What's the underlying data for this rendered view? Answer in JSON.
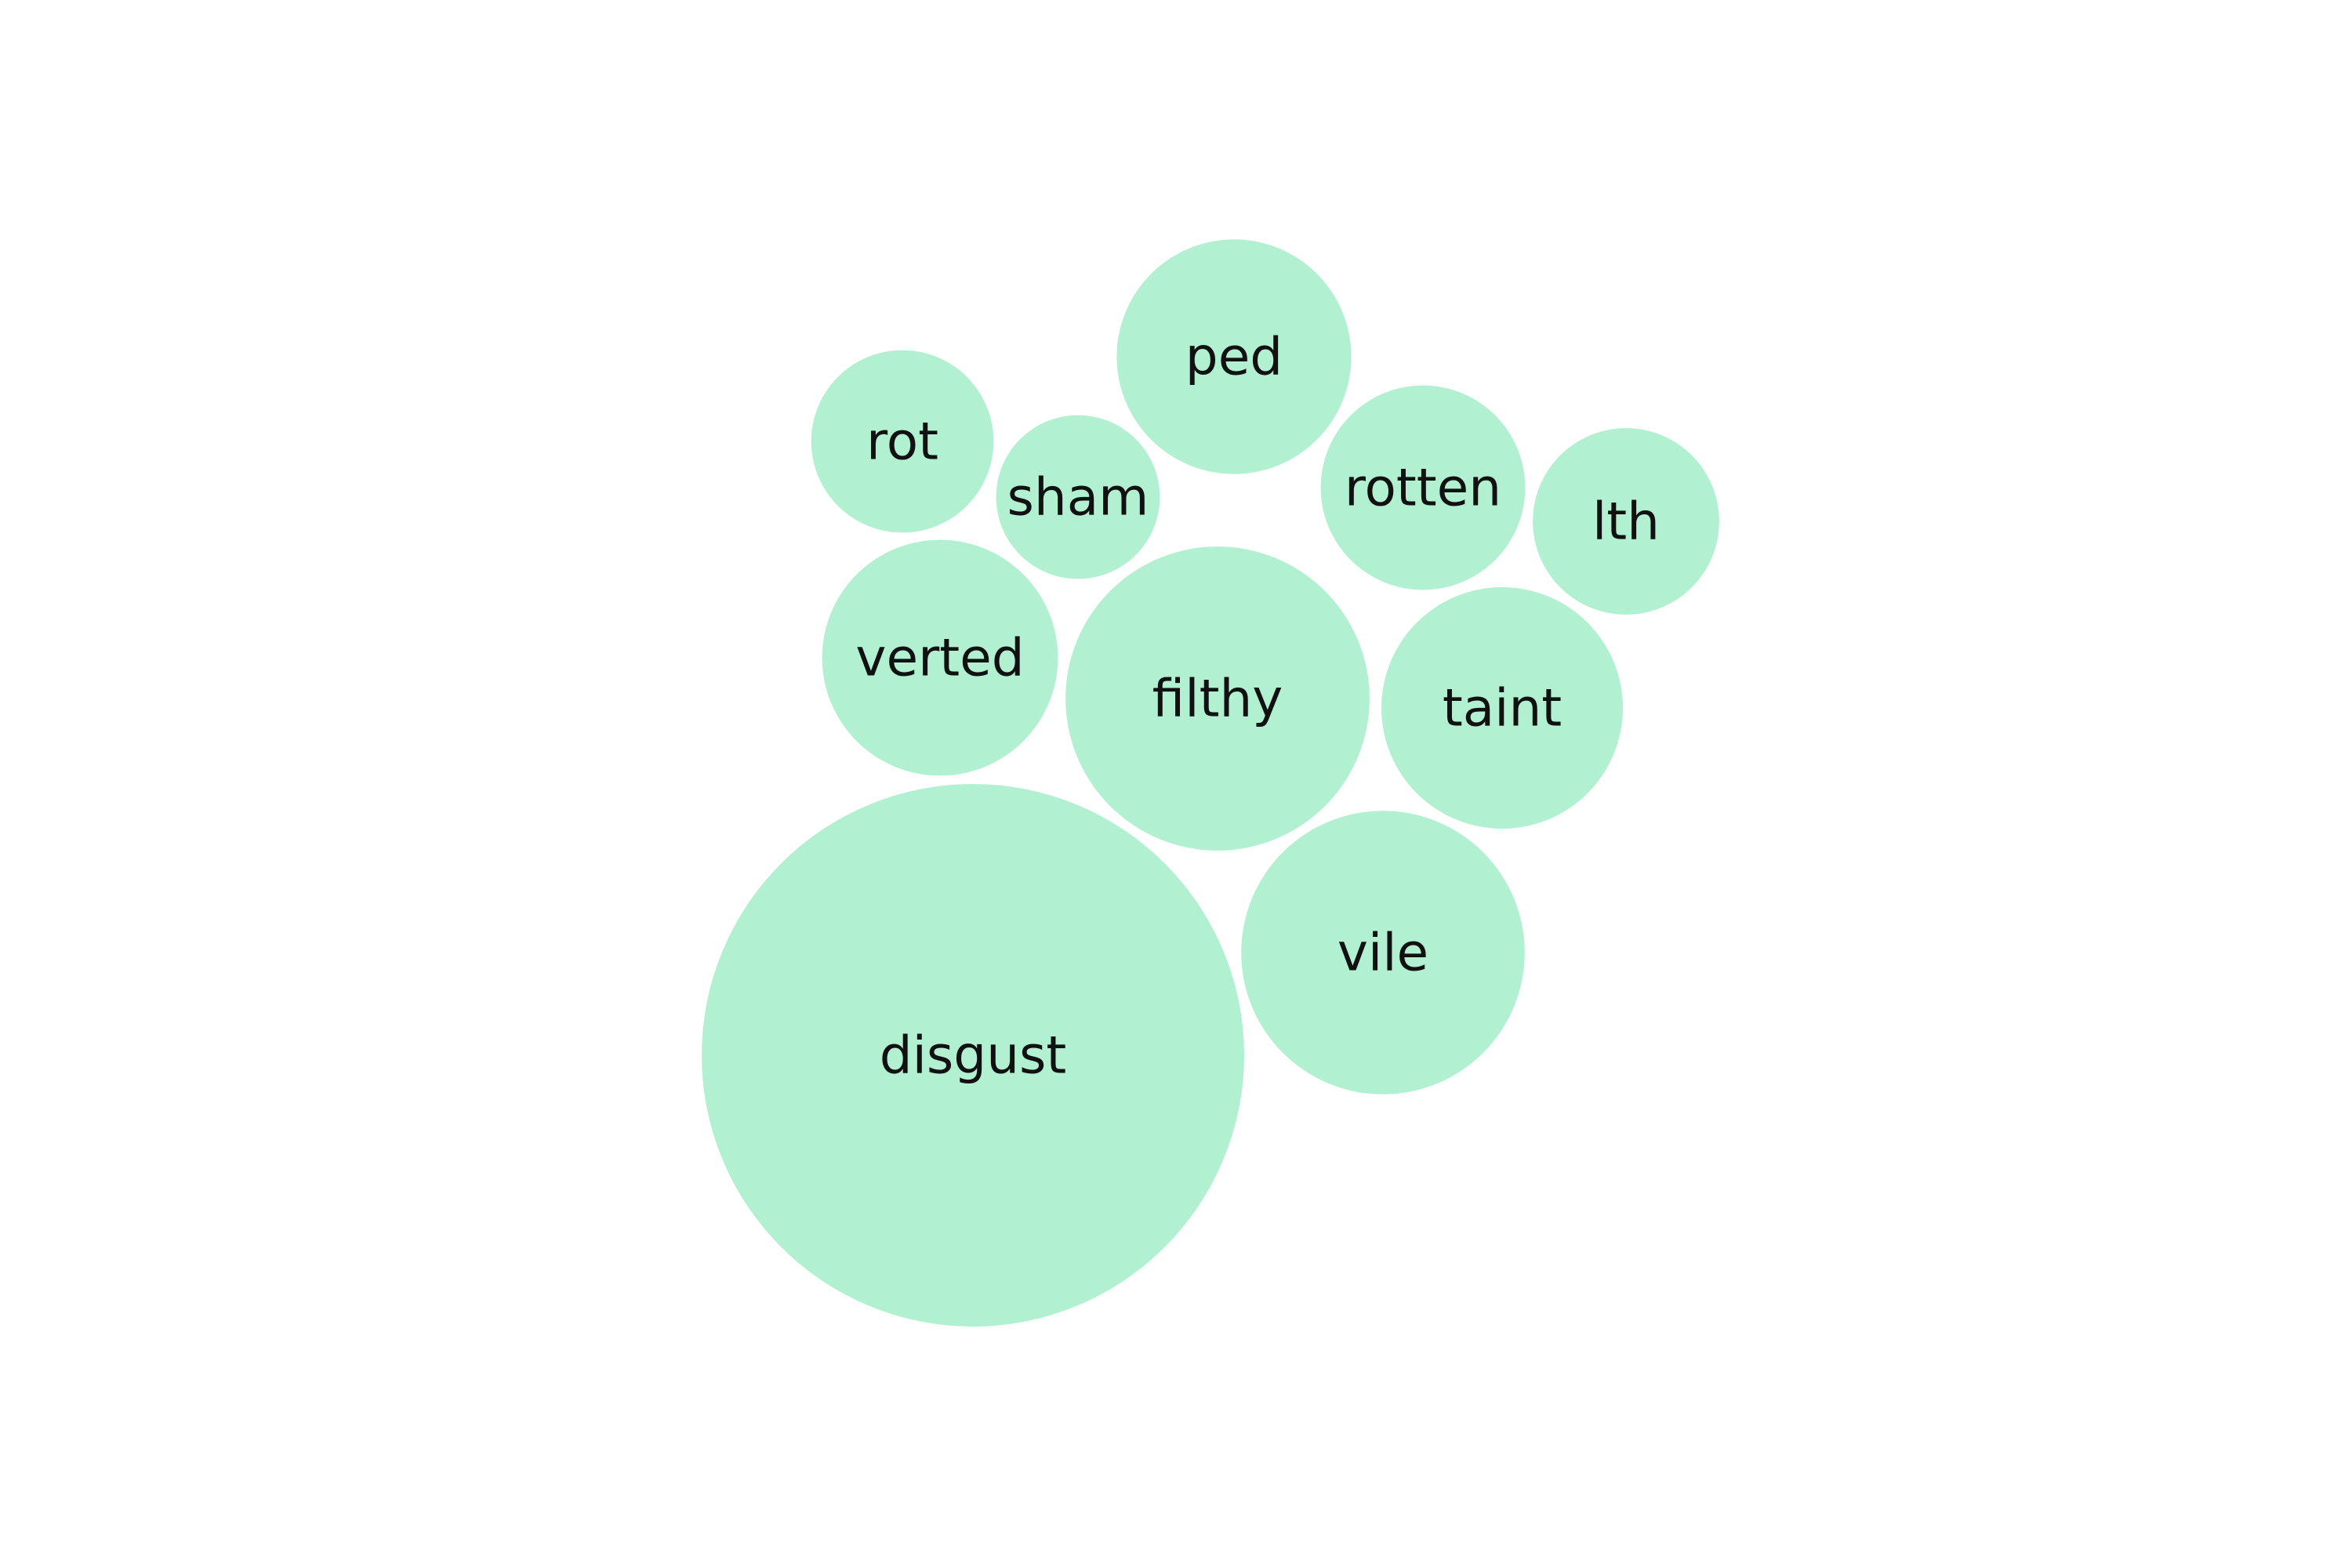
{
  "chart_data": {
    "type": "bubble",
    "title": "",
    "color": "#b1f0d0",
    "label_color": "#111111",
    "bubbles": [
      {
        "label": "disgust",
        "value": 100.0
      },
      {
        "label": "filthy",
        "value": 31.4
      },
      {
        "label": "vile",
        "value": 27.3
      },
      {
        "label": "taint",
        "value": 19.8
      },
      {
        "label": "verted",
        "value": 18.9
      },
      {
        "label": "ped",
        "value": 18.7
      },
      {
        "label": "rotten",
        "value": 14.2
      },
      {
        "label": "lth",
        "value": 11.8
      },
      {
        "label": "rot",
        "value": 11.3
      },
      {
        "label": "sham",
        "value": 9.1
      }
    ]
  }
}
